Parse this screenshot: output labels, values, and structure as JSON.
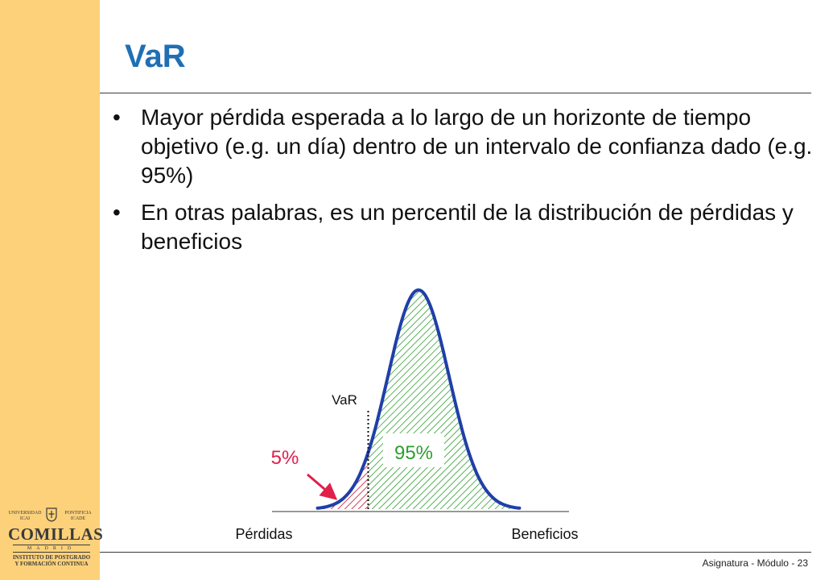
{
  "slide": {
    "title": "VaR",
    "bullet_glyph": "•",
    "bullets": [
      "Mayor pérdida esperada a lo largo de un horizonte de tiempo objetivo (e.g. un día) dentro de un intervalo de confianza dado (e.g. 95%)",
      "En otras palabras, es un percentil de la distribución de pérdidas y beneficios"
    ],
    "footer": "Asignatura - Módulo - 23"
  },
  "logo": {
    "top_left": "UNIVERSIDAD",
    "top_right": "PONTIFICIA",
    "sub_left": "ICAI",
    "sub_right": "ICADE",
    "name": "COMILLAS",
    "city": "MADRID",
    "institute_line1": "INSTITUTO DE POSTGRADO",
    "institute_line2": "Y FORMACIÓN CONTINUA"
  },
  "chart_data": {
    "type": "area",
    "distribution": "normal",
    "var_label": "VaR",
    "tail_label": "5%",
    "body_label": "95%",
    "left_axis_label": "Pérdidas",
    "right_axis_label": "Beneficios",
    "tail_probability": 0.05,
    "body_probability": 0.95,
    "colors": {
      "curve": "#1f3fa8",
      "tail_hatch": "#c8102e",
      "body_hatch": "#2e9e2e",
      "tail_label": "#e0204a",
      "body_label": "#2e9e2e",
      "arrow": "#e0204a"
    }
  },
  "colors": {
    "sidebar": "#fcd17a",
    "title": "#1f6fb5"
  }
}
